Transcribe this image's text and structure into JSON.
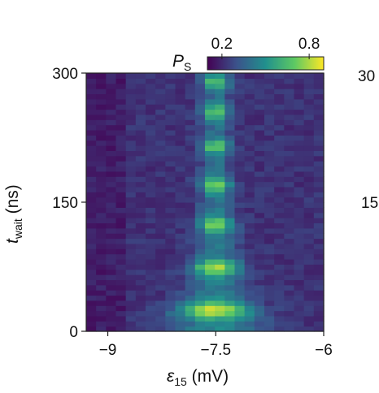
{
  "chart_data": {
    "type": "heatmap",
    "colormap": "viridis",
    "colorbar": {
      "label_main": "P",
      "label_sub": "S",
      "ticks": [
        0.2,
        0.8
      ],
      "tick_labels": [
        "0.2",
        "0.8"
      ],
      "range": [
        0.1,
        0.9
      ]
    },
    "xlabel": {
      "symbol": "ε",
      "sub": "15",
      "unit": " (mV)"
    },
    "ylabel": {
      "symbol": "t",
      "sub": "wait",
      "unit": " (ns)"
    },
    "xlim": [
      -9.3,
      -6
    ],
    "ylim": [
      0,
      300
    ],
    "x_ticks": [
      -9,
      -7.5,
      -6
    ],
    "x_tick_labels": [
      "−9",
      "−7.5",
      "−6"
    ],
    "y_ticks": [
      0,
      150,
      300
    ],
    "y_tick_labels": [
      "0",
      "150",
      "300"
    ],
    "oscillation_center_mV": -7.5,
    "fringe_peaks_ns": [
      25,
      75,
      125,
      170,
      215,
      255,
      290
    ],
    "background_level": 0.22,
    "peak_level": 0.9
  },
  "clipped_neighbor_ticks": [
    "30",
    "15"
  ]
}
